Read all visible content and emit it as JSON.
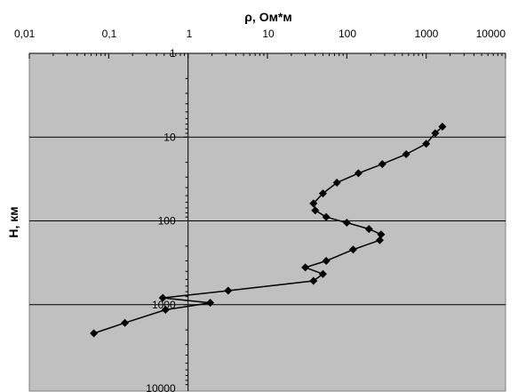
{
  "chart_data": {
    "type": "line",
    "xlabel": "ρ, Ом*м",
    "ylabel": "H, км",
    "x_scale": "log",
    "y_scale": "log",
    "y_inverted": true,
    "xlim": [
      0.01,
      10000
    ],
    "ylim": [
      1,
      10000
    ],
    "x_tick_labels": [
      "0,01",
      "0,1",
      "1",
      "10",
      "100",
      "1000",
      "10000"
    ],
    "y_tick_labels": [
      "1",
      "10",
      "100",
      "1000",
      "10000"
    ],
    "grid": "horizontal major lines",
    "colors": {
      "plot_background": "#c0c0c0",
      "line": "#000000",
      "markers": "#000000",
      "grid": "#000000"
    },
    "marker": "diamond",
    "series": [
      {
        "x": [
          1600,
          1300,
          1000,
          560,
          280,
          140,
          75,
          50,
          38,
          40,
          55,
          100,
          190,
          270,
          260,
          120,
          55,
          30,
          50,
          38,
          3.2,
          0.48,
          1.9,
          0.52,
          0.16,
          0.065
        ],
        "y": [
          7.5,
          9,
          12,
          16,
          21,
          27,
          35,
          47,
          62,
          75,
          90,
          105,
          125,
          145,
          170,
          220,
          300,
          360,
          430,
          520,
          680,
          830,
          950,
          1150,
          1650,
          2200
        ]
      }
    ]
  }
}
